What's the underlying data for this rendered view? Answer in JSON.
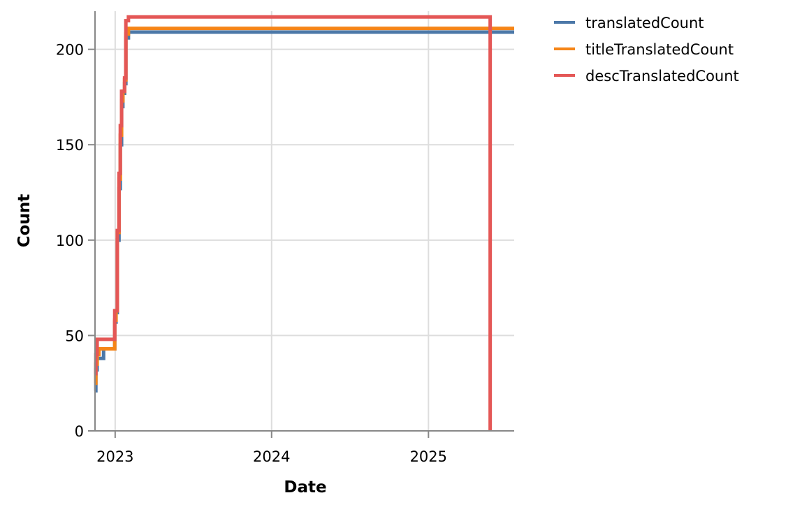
{
  "chart_data": {
    "type": "line",
    "interpolation": "step-after",
    "xlabel": "Date",
    "ylabel": "Count",
    "x_axis": {
      "type": "time",
      "domain": [
        "2022-11-15",
        "2025-07-20"
      ],
      "ticks": [
        {
          "value": "2023-01-01",
          "label": "2023"
        },
        {
          "value": "2024-01-01",
          "label": "2024"
        },
        {
          "value": "2025-01-01",
          "label": "2025"
        }
      ]
    },
    "y_axis": {
      "domain": [
        0,
        220
      ],
      "ticks": [
        {
          "value": 0,
          "label": "0"
        },
        {
          "value": 50,
          "label": "50"
        },
        {
          "value": 100,
          "label": "100"
        },
        {
          "value": 150,
          "label": "150"
        },
        {
          "value": 200,
          "label": "200"
        }
      ]
    },
    "grid": true,
    "legend_position": "right",
    "series": [
      {
        "name": "translatedCount",
        "color": "#4c78a8",
        "points": [
          [
            "2022-11-15",
            21
          ],
          [
            "2022-11-17",
            32
          ],
          [
            "2022-11-20",
            38
          ],
          [
            "2022-12-05",
            43
          ],
          [
            "2022-12-28",
            43
          ],
          [
            "2022-12-31",
            57
          ],
          [
            "2023-01-03",
            62
          ],
          [
            "2023-01-06",
            100
          ],
          [
            "2023-01-10",
            127
          ],
          [
            "2023-01-13",
            150
          ],
          [
            "2023-01-16",
            170
          ],
          [
            "2023-01-19",
            177
          ],
          [
            "2023-01-23",
            182
          ],
          [
            "2023-01-26",
            206
          ],
          [
            "2023-02-01",
            209
          ],
          [
            "2025-07-20",
            209
          ]
        ]
      },
      {
        "name": "titleTranslatedCount",
        "color": "#f58518",
        "points": [
          [
            "2022-11-15",
            25
          ],
          [
            "2022-11-17",
            35
          ],
          [
            "2022-11-20",
            40
          ],
          [
            "2022-11-24",
            43
          ],
          [
            "2022-12-28",
            43
          ],
          [
            "2022-12-31",
            58
          ],
          [
            "2023-01-03",
            63
          ],
          [
            "2023-01-06",
            104
          ],
          [
            "2023-01-10",
            132
          ],
          [
            "2023-01-13",
            155
          ],
          [
            "2023-01-16",
            173
          ],
          [
            "2023-01-19",
            178
          ],
          [
            "2023-01-23",
            184
          ],
          [
            "2023-01-26",
            208
          ],
          [
            "2023-02-01",
            211
          ],
          [
            "2025-07-20",
            211
          ]
        ]
      },
      {
        "name": "descTranslatedCount",
        "color": "#e45756",
        "points": [
          [
            "2022-11-15",
            30
          ],
          [
            "2022-11-17",
            40
          ],
          [
            "2022-11-20",
            48
          ],
          [
            "2022-12-28",
            48
          ],
          [
            "2022-12-31",
            63
          ],
          [
            "2023-01-03",
            63
          ],
          [
            "2023-01-06",
            105
          ],
          [
            "2023-01-10",
            135
          ],
          [
            "2023-01-13",
            160
          ],
          [
            "2023-01-16",
            178
          ],
          [
            "2023-01-23",
            185
          ],
          [
            "2023-01-26",
            215
          ],
          [
            "2023-02-01",
            217
          ],
          [
            "2025-05-25",
            217
          ],
          [
            "2025-05-25",
            0
          ]
        ]
      }
    ]
  }
}
